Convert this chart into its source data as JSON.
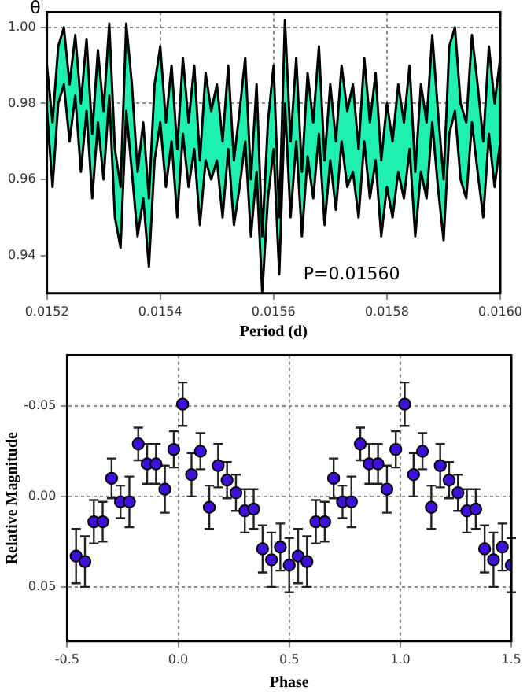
{
  "chart_data": [
    {
      "type": "area",
      "ylabel": "θ",
      "xlabel": "Period (d)",
      "x": [
        0.0152,
        0.01521,
        0.01522,
        0.01523,
        0.01524,
        0.01525,
        0.01526,
        0.01527,
        0.01528,
        0.01529,
        0.0153,
        0.01531,
        0.01532,
        0.01533,
        0.01534,
        0.01535,
        0.01536,
        0.01537,
        0.01538,
        0.01539,
        0.0154,
        0.01541,
        0.01542,
        0.01543,
        0.01544,
        0.01545,
        0.01546,
        0.01547,
        0.01548,
        0.01549,
        0.0155,
        0.01551,
        0.01552,
        0.01553,
        0.01554,
        0.01555,
        0.01556,
        0.01557,
        0.01558,
        0.01559,
        0.0156,
        0.01561,
        0.01562,
        0.01563,
        0.01564,
        0.01565,
        0.01566,
        0.01567,
        0.01568,
        0.01569,
        0.0157,
        0.01571,
        0.01572,
        0.01573,
        0.01574,
        0.01575,
        0.01576,
        0.01577,
        0.01578,
        0.01579,
        0.0158,
        0.01581,
        0.01582,
        0.01583,
        0.01584,
        0.01585,
        0.01586,
        0.01587,
        0.01588,
        0.01589,
        0.0159,
        0.01591,
        0.01592,
        0.01593,
        0.01594,
        0.01595,
        0.01596,
        0.01597,
        0.01598,
        0.01599,
        0.016
      ],
      "series": [
        {
          "color": "#1ef0b0",
          "values": [
            0.99,
            0.975,
            0.995,
            1.0,
            0.985,
            0.998,
            0.98,
            0.997,
            0.972,
            0.994,
            0.978,
            1.001,
            0.968,
            0.958,
            1.001,
            0.985,
            0.962,
            0.975,
            0.955,
            0.985,
            0.995,
            0.975,
            0.99,
            0.968,
            0.992,
            0.975,
            0.99,
            0.965,
            0.988,
            0.978,
            0.985,
            0.97,
            0.99,
            0.965,
            0.978,
            0.992,
            0.96,
            0.985,
            0.945,
            0.975,
            0.99,
            0.95,
            1.002,
            0.97,
            0.992,
            0.962,
            0.988,
            0.975,
            0.995,
            0.965,
            0.985,
            0.97,
            0.99,
            0.978,
            0.985,
            0.968,
            0.992,
            0.975,
            0.988,
            0.965,
            0.98,
            0.97,
            0.985,
            0.975,
            0.99,
            0.962,
            0.985,
            0.975,
            0.998,
            0.978,
            0.96,
            0.995,
            1.0,
            0.98,
            0.975,
            0.998,
            0.985,
            0.97,
            0.995,
            0.98,
            0.992
          ]
        },
        {
          "color": "#ffffff",
          "values": [
            0.978,
            0.958,
            0.98,
            0.985,
            0.97,
            0.982,
            0.962,
            0.978,
            0.955,
            0.975,
            0.96,
            0.982,
            0.95,
            0.942,
            0.978,
            0.962,
            0.945,
            0.955,
            0.937,
            0.965,
            0.975,
            0.958,
            0.97,
            0.95,
            0.972,
            0.958,
            0.968,
            0.948,
            0.965,
            0.96,
            0.965,
            0.95,
            0.968,
            0.948,
            0.958,
            0.97,
            0.945,
            0.962,
            0.93,
            0.955,
            0.968,
            0.935,
            0.98,
            0.95,
            0.97,
            0.945,
            0.966,
            0.955,
            0.972,
            0.948,
            0.965,
            0.952,
            0.97,
            0.958,
            0.962,
            0.95,
            0.97,
            0.955,
            0.965,
            0.945,
            0.958,
            0.95,
            0.962,
            0.955,
            0.968,
            0.945,
            0.962,
            0.955,
            0.975,
            0.958,
            0.944,
            0.972,
            0.978,
            0.96,
            0.955,
            0.975,
            0.962,
            0.95,
            0.972,
            0.958,
            0.97
          ]
        }
      ],
      "xlim": [
        0.0152,
        0.016
      ],
      "xticks": [
        0.0152,
        0.0154,
        0.0156,
        0.0158,
        {
          "value": 0.016,
          "label": "0.0160"
        }
      ],
      "ylim": [
        0.93,
        1.004
      ],
      "yticks": [
        0.94,
        0.96,
        0.98,
        {
          "value": 1,
          "label": "1.00"
        }
      ],
      "grid": true,
      "legend": false,
      "annotations": [
        "P=0.01560"
      ]
    },
    {
      "type": "scatter",
      "xlabel": "Phase",
      "ylabel": "Relative Magnitude",
      "marker": "circle",
      "color": "#3f10d8",
      "x": [
        -0.46,
        -0.42,
        -0.38,
        -0.34,
        -0.3,
        -0.26,
        -0.22,
        -0.18,
        -0.14,
        -0.1,
        -0.06,
        -0.02,
        0.02,
        0.06,
        0.1,
        0.14,
        0.18,
        0.22,
        0.26,
        0.3,
        0.34,
        0.38,
        0.42,
        0.46,
        0.5,
        0.54,
        0.58,
        0.62,
        0.66,
        0.7,
        0.74,
        0.78,
        0.82,
        0.86,
        0.9,
        0.94,
        0.98,
        1.02,
        1.06,
        1.1,
        1.14,
        1.18,
        1.22,
        1.26,
        1.3,
        1.34,
        1.38,
        1.42,
        1.46,
        1.5
      ],
      "values": [
        0.033,
        0.036,
        0.014,
        0.014,
        -0.01,
        0.003,
        0.003,
        -0.029,
        -0.018,
        -0.018,
        -0.004,
        -0.026,
        -0.051,
        -0.012,
        -0.025,
        0.006,
        -0.017,
        -0.009,
        -0.002,
        0.008,
        0.007,
        0.029,
        0.035,
        0.028,
        0.038,
        0.033,
        0.036,
        0.014,
        0.014,
        -0.01,
        0.003,
        0.003,
        -0.029,
        -0.018,
        -0.018,
        -0.004,
        -0.026,
        -0.051,
        -0.012,
        -0.025,
        0.006,
        -0.017,
        -0.009,
        -0.002,
        0.008,
        0.007,
        0.029,
        0.035,
        0.028,
        0.038
      ],
      "errors": [
        0.015,
        0.014,
        0.012,
        0.011,
        0.011,
        0.009,
        0.014,
        0.009,
        0.011,
        0.011,
        0.013,
        0.01,
        0.012,
        0.012,
        0.01,
        0.012,
        0.012,
        0.01,
        0.01,
        0.012,
        0.011,
        0.013,
        0.015,
        0.013,
        0.015,
        0.015,
        0.014,
        0.012,
        0.011,
        0.011,
        0.009,
        0.014,
        0.009,
        0.011,
        0.011,
        0.013,
        0.01,
        0.012,
        0.012,
        0.01,
        0.012,
        0.012,
        0.01,
        0.01,
        0.012,
        0.011,
        0.013,
        0.015,
        0.013,
        0.015
      ],
      "xlim": [
        -0.5,
        1.5
      ],
      "xticks": [
        -0.5,
        {
          "value": 0,
          "label": "0.0"
        },
        0.5,
        {
          "value": 1,
          "label": "1.0"
        },
        1.5
      ],
      "ylim": [
        0.08,
        -0.078
      ],
      "yticks": [
        -0.05,
        {
          "value": 0,
          "label": "0.00"
        },
        0.05
      ],
      "grid": true,
      "legend": false
    }
  ]
}
